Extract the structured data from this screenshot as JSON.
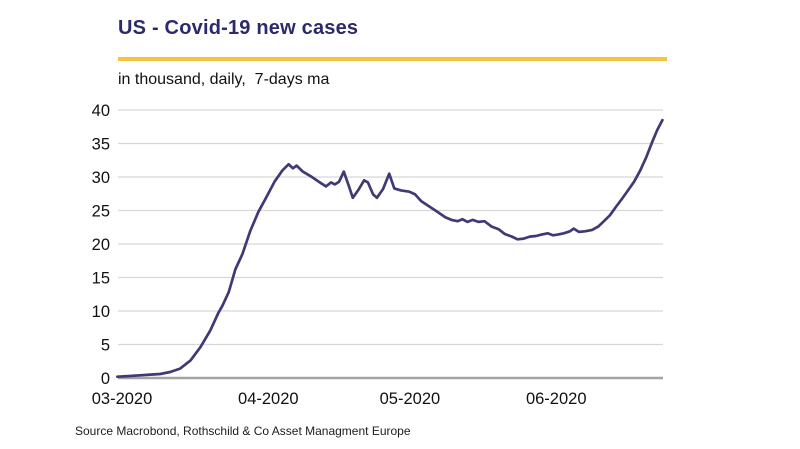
{
  "header": {
    "title": "US - Covid-19 new cases",
    "subtitle": "in thousand, daily,  7-days ma"
  },
  "footer": {
    "source": "Source Macrobond, Rothschild & Co Asset Managment Europe"
  },
  "colors": {
    "title_text": "#2b2a6a",
    "accent_rule": "#f5c33e",
    "series_line": "#3f3a75",
    "gridline": "#d7d7d7",
    "axis_baseline": "#a3a3a3",
    "tick_text": "#111111"
  },
  "chart_data": {
    "type": "line",
    "title": "US - Covid-19 new cases",
    "unit_label": "in thousand, daily, 7-days ma",
    "series_name": "US Covid-19 new cases, 7-day moving average (thousands)",
    "xlabel": "",
    "ylabel": "",
    "x_unit": "days since 2020-03-01",
    "ylim": [
      0,
      40
    ],
    "y_ticks": [
      0,
      5,
      10,
      15,
      20,
      25,
      30,
      35,
      40
    ],
    "x_ticks": [
      {
        "label": "03-2020",
        "day": 0
      },
      {
        "label": "04-2020",
        "day": 31
      },
      {
        "label": "05-2020",
        "day": 61
      },
      {
        "label": "06-2020",
        "day": 92
      }
    ],
    "grid": "horizontal",
    "legend": "none",
    "points": [
      [
        -1,
        0.2
      ],
      [
        1.7,
        0.3
      ],
      [
        3.8,
        0.4
      ],
      [
        6,
        0.5
      ],
      [
        8.1,
        0.6
      ],
      [
        10.2,
        0.9
      ],
      [
        12.3,
        1.4
      ],
      [
        14.5,
        2.6
      ],
      [
        16.6,
        4.6
      ],
      [
        18.7,
        7.1
      ],
      [
        20.4,
        9.7
      ],
      [
        21.3,
        10.8
      ],
      [
        22.6,
        12.8
      ],
      [
        24,
        16.2
      ],
      [
        25.5,
        18.5
      ],
      [
        27.2,
        22
      ],
      [
        28.9,
        24.8
      ],
      [
        30.6,
        27
      ],
      [
        32.3,
        29.3
      ],
      [
        34,
        31
      ],
      [
        35.3,
        31.9
      ],
      [
        36.2,
        31.3
      ],
      [
        37,
        31.7
      ],
      [
        38.3,
        30.8
      ],
      [
        40,
        30.1
      ],
      [
        41.7,
        29.3
      ],
      [
        43.2,
        28.6
      ],
      [
        44.3,
        29.2
      ],
      [
        45.1,
        28.9
      ],
      [
        46,
        29.3
      ],
      [
        47,
        30.8
      ],
      [
        48.1,
        28.6
      ],
      [
        48.9,
        26.9
      ],
      [
        50.2,
        28.2
      ],
      [
        51.3,
        29.5
      ],
      [
        52.1,
        29.2
      ],
      [
        53.2,
        27.4
      ],
      [
        54,
        26.9
      ],
      [
        55.3,
        28.2
      ],
      [
        56.6,
        30.5
      ],
      [
        57.7,
        28.3
      ],
      [
        59.1,
        28
      ],
      [
        60.9,
        27.8
      ],
      [
        62.1,
        27.4
      ],
      [
        63.4,
        26.4
      ],
      [
        65.1,
        25.6
      ],
      [
        66.8,
        24.8
      ],
      [
        68.5,
        24
      ],
      [
        69.8,
        23.6
      ],
      [
        71.1,
        23.4
      ],
      [
        72.1,
        23.7
      ],
      [
        73.2,
        23.3
      ],
      [
        74.3,
        23.6
      ],
      [
        75.5,
        23.3
      ],
      [
        76.8,
        23.4
      ],
      [
        78.3,
        22.6
      ],
      [
        79.8,
        22.2
      ],
      [
        81.1,
        21.5
      ],
      [
        82.6,
        21.1
      ],
      [
        83.8,
        20.7
      ],
      [
        85.1,
        20.8
      ],
      [
        86.4,
        21.1
      ],
      [
        87.7,
        21.2
      ],
      [
        88.9,
        21.4
      ],
      [
        90.2,
        21.6
      ],
      [
        91.3,
        21.3
      ],
      [
        92.3,
        21.4
      ],
      [
        93.6,
        21.6
      ],
      [
        94.9,
        21.9
      ],
      [
        95.7,
        22.3
      ],
      [
        96.8,
        21.8
      ],
      [
        98.1,
        21.9
      ],
      [
        99.6,
        22.1
      ],
      [
        100.9,
        22.6
      ],
      [
        102.1,
        23.4
      ],
      [
        103.4,
        24.3
      ],
      [
        104.7,
        25.6
      ],
      [
        106,
        26.8
      ],
      [
        107.2,
        28
      ],
      [
        108.5,
        29.3
      ],
      [
        109.8,
        31
      ],
      [
        111.1,
        33
      ],
      [
        112.3,
        35.2
      ],
      [
        113.4,
        37
      ],
      [
        114.5,
        38.5
      ]
    ]
  }
}
